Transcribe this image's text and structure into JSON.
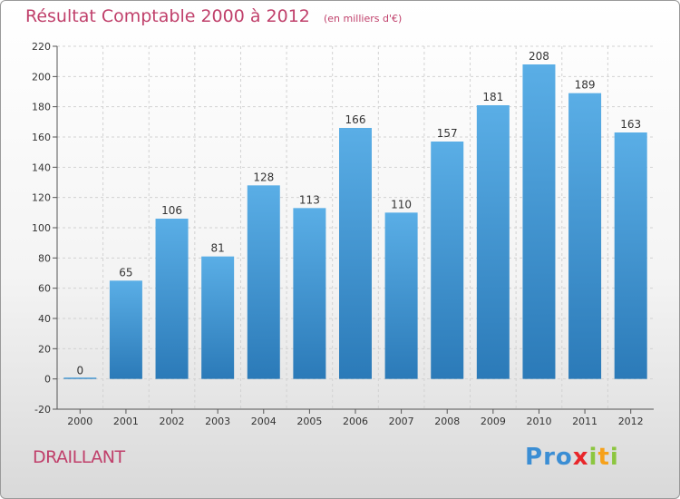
{
  "title": "Résultat Comptable 2000 à 2012",
  "unit": "(en milliers d'€)",
  "commune": "DRAILLANT",
  "logo": [
    "P",
    "r",
    "o",
    "x",
    "i",
    "t",
    "i"
  ],
  "colors": {
    "title": "#c0406b",
    "bar_top": "#5aaee6",
    "bar_bottom": "#2b7ab8",
    "logo": [
      "#3b8ed4",
      "#3b8ed4",
      "#3b8ed4",
      "#e8262a",
      "#8cc63f",
      "#f6a11a",
      "#8cc63f"
    ]
  },
  "chart_data": {
    "type": "bar",
    "categories": [
      "2000",
      "2001",
      "2002",
      "2003",
      "2004",
      "2005",
      "2006",
      "2007",
      "2008",
      "2009",
      "2010",
      "2011",
      "2012"
    ],
    "values": [
      0,
      65,
      106,
      81,
      128,
      113,
      166,
      110,
      157,
      181,
      208,
      189,
      163
    ],
    "ylim": [
      -20,
      220
    ],
    "yticks": [
      -20,
      0,
      20,
      40,
      60,
      80,
      100,
      120,
      140,
      160,
      180,
      200,
      220
    ],
    "grid": true,
    "xlabel": "",
    "ylabel": ""
  }
}
